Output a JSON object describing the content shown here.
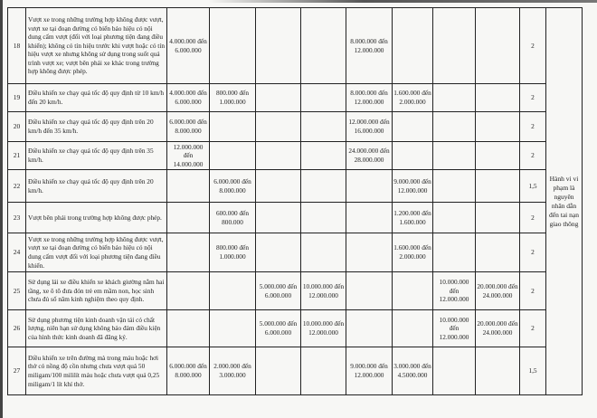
{
  "rows": [
    {
      "no": "18",
      "desc": "Vượt xe trong những trường hợp không được vượt, vượt xe tại đoạn đường có biển báo hiệu có nội dung cấm vượt (đối với loại phương tiện đang điều khiển); không có tín hiệu trước khi vượt hoặc có tín hiệu vượt xe nhưng không sử dụng trong suốt quá trình vượt xe; vượt bên phải xe khác trong trường hợp không được phép.",
      "c": [
        "4.000.000 đến 6.000.000",
        "",
        "",
        "",
        "8.000.000 đến 12.000.000",
        "",
        "",
        "",
        ""
      ],
      "points": "2"
    },
    {
      "no": "19",
      "desc": "Điều khiển xe chạy quá tốc độ quy định từ 10 km/h đến 20 km/h.",
      "c": [
        "4.000.000 đến 6.000.000",
        "800.000 đến 1.000.000",
        "",
        "",
        "8.000.000 đến 12.000.000",
        "1.600.000 đến 2.000.000",
        "",
        "",
        ""
      ],
      "points": "2"
    },
    {
      "no": "20",
      "desc": "Điều khiển xe chạy quá tốc độ quy định trên 20 km/h đến 35 km/h.",
      "c": [
        "6.000.000 đến 8.000.000",
        "",
        "",
        "",
        "12.000.000 đến 16.000.000",
        "",
        "",
        "",
        ""
      ],
      "points": "2"
    },
    {
      "no": "21",
      "desc": "Điều khiển xe chạy quá tốc độ quy định trên 35 km/h.",
      "c": [
        "12.000.000 đến 14.000.000",
        "",
        "",
        "",
        "24.000.000 đến 28.000.000",
        "",
        "",
        "",
        ""
      ],
      "points": "2"
    },
    {
      "no": "22",
      "desc": "Điều khiển xe chạy quá tốc độ quy định trên 20 km/h.",
      "c": [
        "",
        "6.000.000 đến 8.000.000",
        "",
        "",
        "",
        "9.000.000 đến 12.000.000",
        "",
        "",
        ""
      ],
      "points": "1,5"
    },
    {
      "no": "23",
      "desc": "Vượt bên phải trong trường hợp không được phép.",
      "c": [
        "",
        "600.000 đến 800.000",
        "",
        "",
        "",
        "1.200.000 đến 1.600.000",
        "",
        "",
        ""
      ],
      "points": "2"
    },
    {
      "no": "24",
      "desc": "Vượt xe trong những trường hợp không được vượt, vượt xe tại đoạn đường có biển báo hiệu có nội dung cấm vượt đối với loại phương tiện đang điều khiển.",
      "c": [
        "",
        "800.000 đến 1.000.000",
        "",
        "",
        "",
        "1.600.000 đến 2.000.000",
        "",
        "",
        ""
      ],
      "points": "2"
    },
    {
      "no": "25",
      "desc": "Sử dụng lái xe điều khiển xe khách giường nằm hai tầng, xe ô tô đưa đón trẻ em mầm non, học sinh chưa đủ số năm kinh nghiệm theo quy định.",
      "c": [
        "",
        "",
        "5.000.000 đến 6.000.000",
        "10.000.000 đến 12.000.000",
        "",
        "",
        "10.000.000 đến 12.000.000",
        "20.000.000 đến 24.000.000",
        ""
      ],
      "points": "2"
    },
    {
      "no": "26",
      "desc": "Sử dụng phương tiện kinh doanh vận tải có chất lượng, niên hạn sử dụng không bảo đảm điều kiện của hình thức kinh doanh đã đăng ký.",
      "c": [
        "",
        "",
        "5.000.000 đến 6.000.000",
        "10.000.000 đến 12.000.000",
        "",
        "",
        "10.000.000 đến 12.000.000",
        "20.000.000 đến 24.000.000",
        ""
      ],
      "points": "2"
    },
    {
      "no": "27",
      "desc": "Điều khiển xe trên đường mà trong máu hoặc hơi thở có nồng độ cồn nhưng chưa vượt quá 50 miligam/100 mililít máu hoặc chưa vượt quá 0,25 miligam/1 lít khí thở.",
      "c": [
        "6.000.000 đến 8.000.000",
        "2.000.000 đến 3.000.000",
        "",
        "",
        "9.000.000 đến 12.000.000",
        "3.000.000 đến 4.5000.000",
        "",
        "",
        ""
      ],
      "points": "1,5"
    }
  ],
  "note": "Hành vi vi phạm là nguyên nhân dẫn đến tai nạn giao thông"
}
